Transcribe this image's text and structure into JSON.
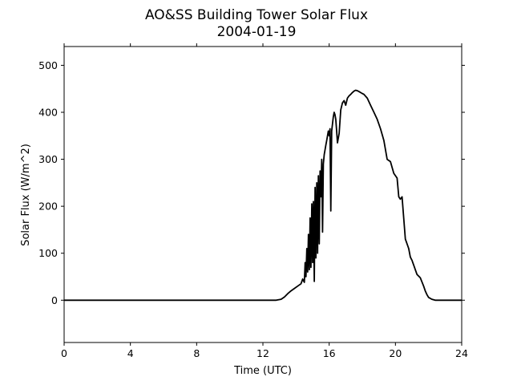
{
  "chart_data": {
    "type": "line",
    "title": "AO&SS Building Tower Solar Flux",
    "subtitle": "2004-01-19",
    "xlabel": "Time (UTC)",
    "ylabel": "Solar Flux (W/m^2)",
    "xlim": [
      0,
      24
    ],
    "ylim": [
      -90,
      540
    ],
    "xticks": [
      0,
      4,
      8,
      12,
      16,
      20,
      24
    ],
    "yticks": [
      0,
      100,
      200,
      300,
      400,
      500
    ],
    "grid": false,
    "series": [
      {
        "color": "#000000",
        "x": [
          0,
          12.8,
          13.1,
          13.3,
          13.5,
          13.7,
          13.9,
          14.1,
          14.3,
          14.4,
          14.5,
          14.55,
          14.6,
          14.65,
          14.7,
          14.75,
          14.8,
          14.85,
          14.9,
          14.95,
          15.0,
          15.05,
          15.1,
          15.15,
          15.2,
          15.25,
          15.3,
          15.35,
          15.4,
          15.45,
          15.5,
          15.55,
          15.6,
          15.65,
          15.7,
          15.75,
          15.8,
          15.85,
          15.9,
          15.95,
          16.0,
          16.05,
          16.1,
          16.15,
          16.2,
          16.25,
          16.3,
          16.35,
          16.4,
          16.45,
          16.5,
          16.6,
          16.7,
          16.8,
          16.9,
          17.0,
          17.1,
          17.2,
          17.3,
          17.4,
          17.5,
          17.6,
          17.7,
          17.8,
          17.9,
          18.0,
          18.1,
          18.3,
          18.5,
          18.7,
          18.9,
          19.1,
          19.3,
          19.5,
          19.7,
          19.9,
          20.1,
          20.2,
          20.3,
          20.4,
          20.6,
          20.8,
          20.9,
          20.95,
          21.0,
          21.05,
          21.1,
          21.15,
          21.2,
          21.3,
          21.5,
          21.7,
          21.8,
          21.9,
          22.0,
          22.2,
          22.4,
          22.6,
          22.8,
          23.0,
          23.5,
          24.0
        ],
        "y": [
          0,
          0,
          2,
          7,
          14,
          20,
          25,
          30,
          35,
          45,
          38,
          80,
          50,
          110,
          60,
          140,
          65,
          175,
          70,
          205,
          80,
          210,
          40,
          240,
          90,
          250,
          100,
          265,
          120,
          275,
          220,
          300,
          145,
          290,
          310,
          320,
          330,
          340,
          350,
          360,
          350,
          365,
          190,
          360,
          375,
          390,
          400,
          395,
          385,
          360,
          335,
          355,
          405,
          420,
          425,
          415,
          430,
          435,
          438,
          442,
          445,
          447,
          446,
          444,
          442,
          440,
          438,
          430,
          415,
          400,
          385,
          365,
          340,
          300,
          295,
          270,
          260,
          220,
          215,
          220,
          130,
          110,
          92,
          88,
          85,
          80,
          75,
          70,
          65,
          55,
          48,
          30,
          20,
          12,
          6,
          2,
          0,
          0,
          0,
          0,
          0,
          0
        ]
      }
    ]
  }
}
